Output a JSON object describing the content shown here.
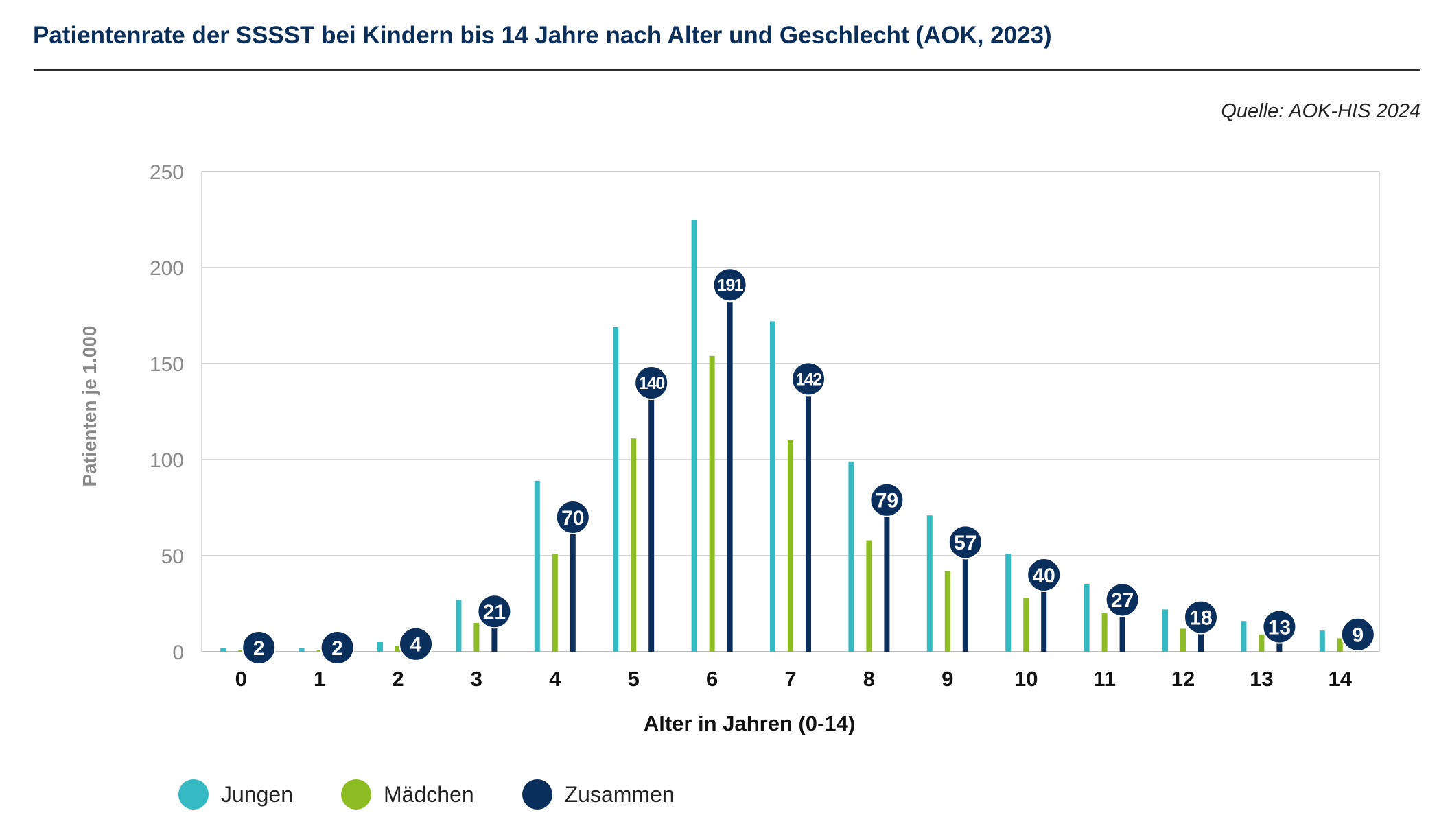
{
  "title": "Patientenrate der SSSST bei Kindern bis 14 Jahre nach Alter und Geschlecht (AOK, 2023)",
  "source": "Quelle: AOK-HIS 2024",
  "chart_data": {
    "type": "bar",
    "title": "Patientenrate der SSSST bei Kindern bis 14 Jahre nach Alter und Geschlecht (AOK, 2023)",
    "xlabel": "Alter in Jahren (0-14)",
    "ylabel": "Patienten je 1.000",
    "ylim": [
      0,
      250
    ],
    "yticks": [
      0,
      50,
      100,
      150,
      200,
      250
    ],
    "grid": true,
    "legend_position": "bottom-left",
    "categories": [
      "0",
      "1",
      "2",
      "3",
      "4",
      "5",
      "6",
      "7",
      "8",
      "9",
      "10",
      "11",
      "12",
      "13",
      "14"
    ],
    "series": [
      {
        "name": "Jungen",
        "color": "#35b9c2",
        "values": [
          2,
          2,
          5,
          27,
          89,
          169,
          225,
          172,
          99,
          71,
          51,
          35,
          22,
          16,
          11
        ]
      },
      {
        "name": "Mädchen",
        "color": "#8dbd22",
        "values": [
          1,
          1,
          3,
          15,
          51,
          111,
          154,
          110,
          58,
          42,
          28,
          20,
          12,
          9,
          7
        ]
      },
      {
        "name": "Zusammen",
        "color": "#0a2f5c",
        "values": [
          2,
          2,
          4,
          21,
          70,
          140,
          191,
          142,
          79,
          57,
          40,
          27,
          18,
          13,
          9
        ],
        "labeled": true
      }
    ]
  }
}
